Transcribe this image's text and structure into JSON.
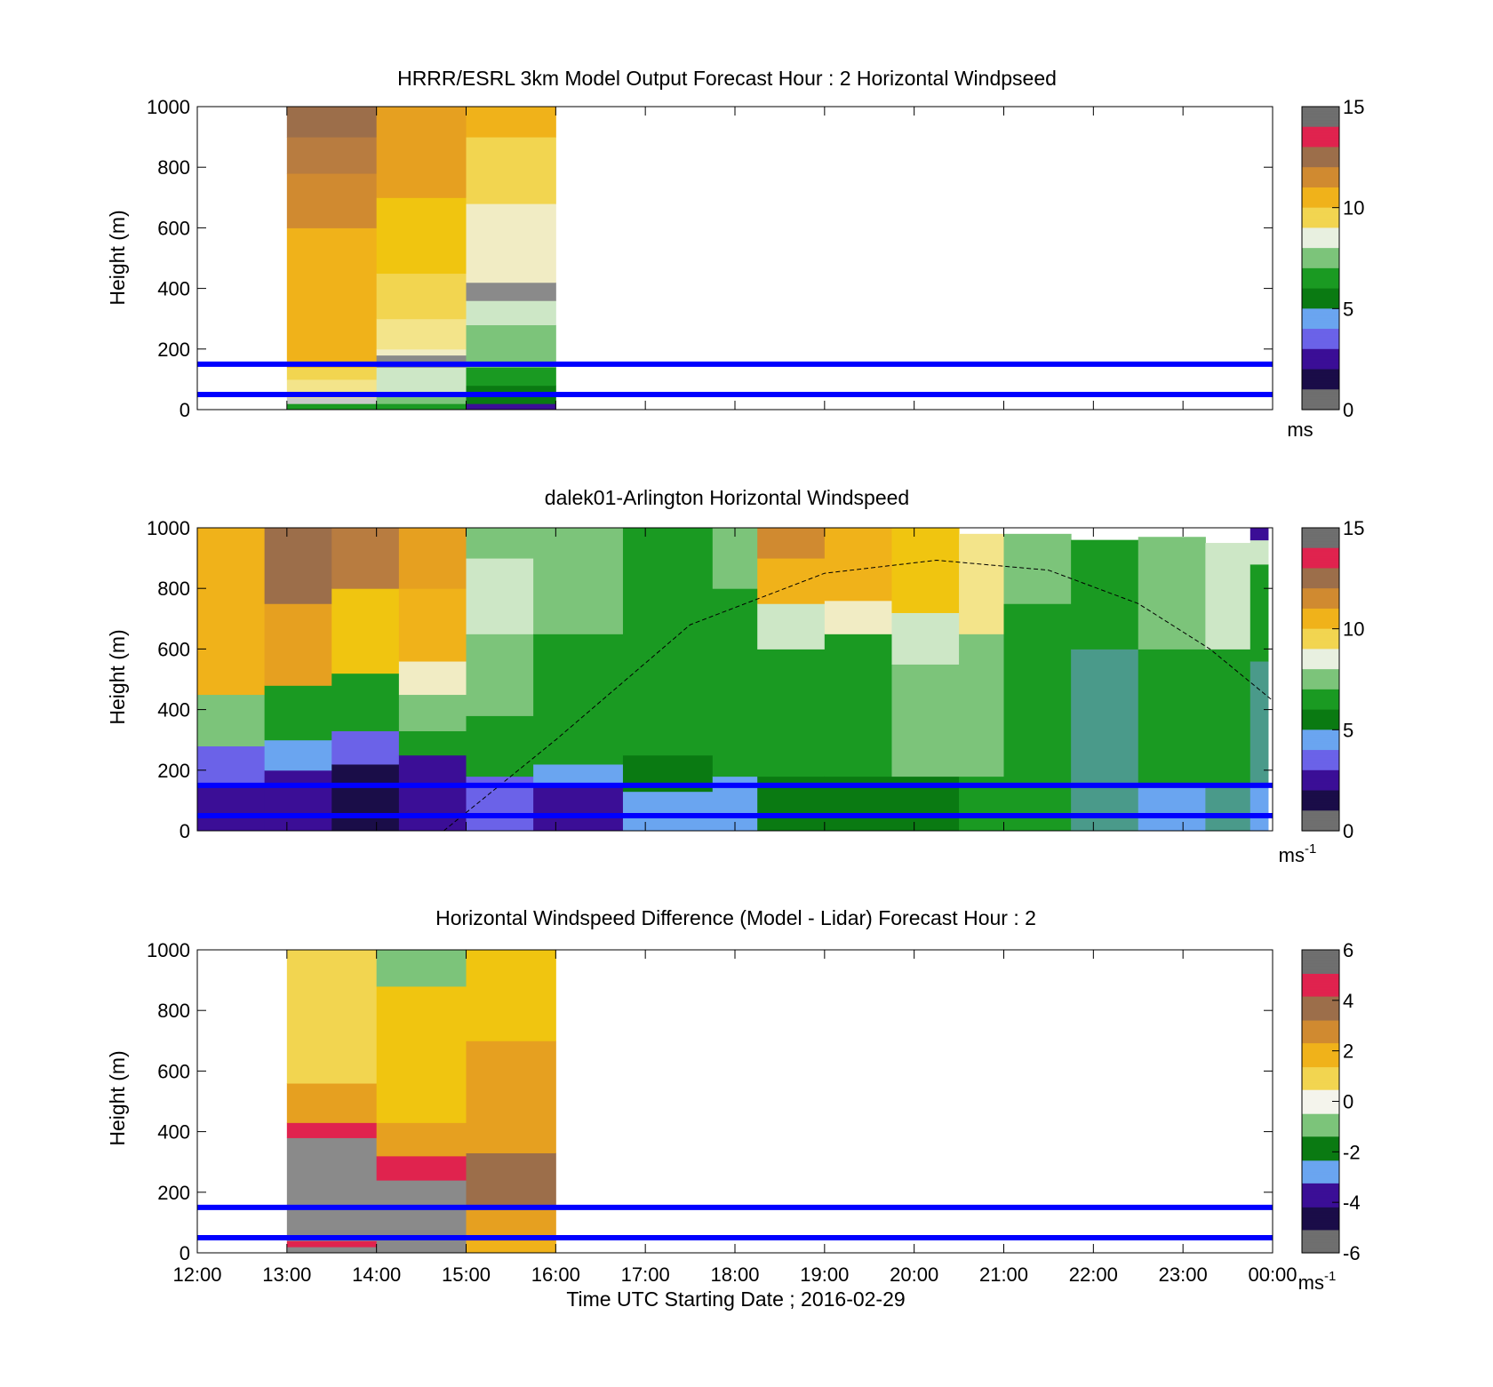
{
  "chart_data": [
    {
      "type": "heatmap",
      "title": "HRRR/ESRL 3km Model Output   Forecast Hour : 2 Horizontal Windpseed",
      "ylabel": "Height (m)",
      "ylim": [
        0,
        1000
      ],
      "yticks": [
        "0",
        "200",
        "400",
        "600",
        "800",
        "1000"
      ],
      "xlim_hours": [
        12,
        24
      ],
      "colorbar": {
        "range": [
          0,
          15
        ],
        "ticks": [
          "0",
          "5",
          "10",
          "15"
        ],
        "unit": "ms",
        "unit_sup": ""
      },
      "reference_lines_m": [
        50,
        150
      ],
      "columns": [
        {
          "t0": 13,
          "t1": 14,
          "bins": [
            [
              0,
              20,
              "green"
            ],
            [
              20,
              40,
              "grey_light"
            ],
            [
              40,
              100,
              "yellow_pale"
            ],
            [
              100,
              140,
              "yellow_light"
            ],
            [
              140,
              600,
              "gold"
            ],
            [
              600,
              780,
              "orange_brown"
            ],
            [
              780,
              900,
              "brown_light"
            ],
            [
              900,
              1000,
              "brown"
            ]
          ]
        },
        {
          "t0": 14,
          "t1": 15,
          "bins": [
            [
              0,
              20,
              "green"
            ],
            [
              20,
              60,
              "green_light"
            ],
            [
              60,
              140,
              "green_pale"
            ],
            [
              140,
              180,
              "grey"
            ],
            [
              180,
              200,
              "cream"
            ],
            [
              200,
              300,
              "yellow_pale"
            ],
            [
              300,
              450,
              "yellow_light"
            ],
            [
              450,
              700,
              "yellow"
            ],
            [
              700,
              1000,
              "orange"
            ]
          ]
        },
        {
          "t0": 15,
          "t1": 16,
          "bins": [
            [
              0,
              20,
              "indigo"
            ],
            [
              20,
              80,
              "green_dark"
            ],
            [
              80,
              140,
              "green"
            ],
            [
              140,
              280,
              "green_light"
            ],
            [
              280,
              360,
              "green_pale"
            ],
            [
              360,
              420,
              "grey"
            ],
            [
              420,
              680,
              "cream"
            ],
            [
              680,
              900,
              "yellow_light"
            ],
            [
              900,
              1000,
              "gold"
            ]
          ]
        }
      ]
    },
    {
      "type": "heatmap",
      "title": "dalek01-Arlington  Horizontal Windspeed",
      "ylabel": "Height (m)",
      "ylim": [
        0,
        1000
      ],
      "yticks": [
        "0",
        "200",
        "400",
        "600",
        "800",
        "1000"
      ],
      "xlim_hours": [
        12,
        24
      ],
      "colorbar": {
        "range": [
          0,
          15
        ],
        "ticks": [
          "0",
          "5",
          "10",
          "15"
        ],
        "unit": "ms",
        "unit_sup": "-1"
      },
      "reference_lines_m": [
        50,
        150
      ],
      "curve": {
        "style": "dashed",
        "points": [
          [
            14.75,
            0
          ],
          [
            16,
            300
          ],
          [
            17.5,
            680
          ],
          [
            19,
            850
          ],
          [
            20.25,
            893
          ],
          [
            21.5,
            860
          ],
          [
            22.5,
            750
          ],
          [
            23.3,
            600
          ],
          [
            24,
            430
          ]
        ]
      },
      "columns": [
        {
          "t0": 12.0,
          "t1": 12.75,
          "bins": [
            [
              0,
              150,
              "indigo"
            ],
            [
              150,
              280,
              "blue_mid"
            ],
            [
              280,
              450,
              "green_light"
            ],
            [
              450,
              1000,
              "gold"
            ]
          ]
        },
        {
          "t0": 12.75,
          "t1": 13.5,
          "bins": [
            [
              0,
              200,
              "indigo"
            ],
            [
              200,
              300,
              "blue_light"
            ],
            [
              300,
              480,
              "green"
            ],
            [
              480,
              750,
              "orange"
            ],
            [
              750,
              1000,
              "brown"
            ]
          ]
        },
        {
          "t0": 13.5,
          "t1": 14.25,
          "bins": [
            [
              0,
              220,
              "navy"
            ],
            [
              220,
              330,
              "blue_mid"
            ],
            [
              330,
              520,
              "green"
            ],
            [
              520,
              800,
              "yellow"
            ],
            [
              800,
              1000,
              "brown_light"
            ]
          ]
        },
        {
          "t0": 14.25,
          "t1": 15.0,
          "bins": [
            [
              0,
              250,
              "indigo"
            ],
            [
              250,
              330,
              "green"
            ],
            [
              330,
              450,
              "green_light"
            ],
            [
              450,
              560,
              "cream"
            ],
            [
              560,
              800,
              "gold"
            ],
            [
              800,
              1000,
              "orange"
            ]
          ]
        },
        {
          "t0": 15.0,
          "t1": 15.75,
          "bins": [
            [
              0,
              180,
              "blue_mid"
            ],
            [
              180,
              380,
              "green"
            ],
            [
              380,
              650,
              "green_light"
            ],
            [
              650,
              900,
              "green_pale"
            ],
            [
              900,
              1000,
              "green_light"
            ]
          ]
        },
        {
          "t0": 15.75,
          "t1": 16.75,
          "bins": [
            [
              0,
              150,
              "indigo"
            ],
            [
              150,
              220,
              "blue_light"
            ],
            [
              220,
              650,
              "green"
            ],
            [
              650,
              1000,
              "green_light"
            ]
          ]
        },
        {
          "t0": 16.75,
          "t1": 17.75,
          "bins": [
            [
              0,
              130,
              "blue_light"
            ],
            [
              130,
              250,
              "green_dark"
            ],
            [
              250,
              1000,
              "green"
            ]
          ]
        },
        {
          "t0": 17.75,
          "t1": 18.25,
          "bins": [
            [
              0,
              180,
              "blue_light"
            ],
            [
              180,
              800,
              "green"
            ],
            [
              800,
              1000,
              "green_light"
            ]
          ]
        },
        {
          "t0": 18.25,
          "t1": 19.0,
          "bins": [
            [
              0,
              180,
              "green_dark"
            ],
            [
              180,
              600,
              "green"
            ],
            [
              600,
              750,
              "green_pale"
            ],
            [
              750,
              900,
              "gold"
            ],
            [
              900,
              1000,
              "orange_brown"
            ]
          ]
        },
        {
          "t0": 19.0,
          "t1": 19.75,
          "bins": [
            [
              0,
              180,
              "green_dark"
            ],
            [
              180,
              650,
              "green"
            ],
            [
              650,
              760,
              "cream"
            ],
            [
              760,
              1000,
              "gold"
            ]
          ]
        },
        {
          "t0": 19.75,
          "t1": 20.5,
          "bins": [
            [
              0,
              180,
              "green_dark"
            ],
            [
              180,
              550,
              "green_light"
            ],
            [
              550,
              720,
              "green_pale"
            ],
            [
              720,
              1000,
              "yellow"
            ]
          ]
        },
        {
          "t0": 20.5,
          "t1": 21.0,
          "bins": [
            [
              0,
              180,
              "green"
            ],
            [
              180,
              650,
              "green_light"
            ],
            [
              650,
              980,
              "yellow_pale"
            ]
          ]
        },
        {
          "t0": 21.0,
          "t1": 21.75,
          "bins": [
            [
              0,
              180,
              "green"
            ],
            [
              180,
              750,
              "green"
            ],
            [
              750,
              980,
              "green_light"
            ]
          ]
        },
        {
          "t0": 21.75,
          "t1": 22.5,
          "bins": [
            [
              0,
              150,
              "green_blue"
            ],
            [
              150,
              600,
              "green_blue"
            ],
            [
              600,
              960,
              "green"
            ]
          ]
        },
        {
          "t0": 22.5,
          "t1": 23.25,
          "bins": [
            [
              0,
              150,
              "blue_light"
            ],
            [
              150,
              600,
              "green"
            ],
            [
              600,
              970,
              "green_light"
            ]
          ]
        },
        {
          "t0": 23.25,
          "t1": 23.75,
          "bins": [
            [
              0,
              150,
              "green_blue"
            ],
            [
              150,
              600,
              "green"
            ],
            [
              600,
              950,
              "green_pale"
            ]
          ]
        },
        {
          "t0": 23.75,
          "t1": 23.95,
          "bins": [
            [
              0,
              150,
              "blue_light"
            ],
            [
              150,
              560,
              "green_blue"
            ],
            [
              560,
              880,
              "green"
            ],
            [
              880,
              960,
              "green_pale"
            ],
            [
              960,
              1000,
              "indigo"
            ]
          ]
        }
      ]
    },
    {
      "type": "heatmap",
      "title": "Horizontal Windspeed Difference (Model - Lidar) Forecast Hour : 2",
      "ylabel": "Height (m)",
      "xlabel": "Time UTC  Starting Date ; 2016-02-29",
      "ylim": [
        0,
        1000
      ],
      "yticks": [
        "0",
        "200",
        "400",
        "600",
        "800",
        "1000"
      ],
      "xticks": [
        "12:00",
        "13:00",
        "14:00",
        "15:00",
        "16:00",
        "17:00",
        "18:00",
        "19:00",
        "20:00",
        "21:00",
        "22:00",
        "23:00",
        "00:00"
      ],
      "xlim_hours": [
        12,
        24
      ],
      "colorbar": {
        "range": [
          -6,
          6
        ],
        "ticks": [
          "-6",
          "-4",
          "-2",
          "0",
          "2",
          "4",
          "6"
        ],
        "unit": "ms",
        "unit_sup": "-1"
      },
      "reference_lines_m": [
        50,
        150
      ],
      "columns": [
        {
          "t0": 13,
          "t1": 14,
          "bins": [
            [
              0,
              20,
              "grey"
            ],
            [
              20,
              40,
              "red"
            ],
            [
              40,
              380,
              "grey"
            ],
            [
              380,
              430,
              "red"
            ],
            [
              430,
              560,
              "orange"
            ],
            [
              560,
              1000,
              "yellow_light"
            ]
          ]
        },
        {
          "t0": 14,
          "t1": 15,
          "bins": [
            [
              0,
              30,
              "grey"
            ],
            [
              30,
              240,
              "grey"
            ],
            [
              240,
              320,
              "red"
            ],
            [
              320,
              430,
              "orange"
            ],
            [
              430,
              880,
              "yellow"
            ],
            [
              880,
              1000,
              "green_light"
            ]
          ]
        },
        {
          "t0": 15,
          "t1": 16,
          "bins": [
            [
              0,
              40,
              "gold"
            ],
            [
              40,
              150,
              "orange"
            ],
            [
              150,
              330,
              "brown"
            ],
            [
              330,
              700,
              "orange"
            ],
            [
              700,
              1000,
              "yellow"
            ]
          ]
        }
      ]
    }
  ],
  "palette": {
    "navy": "#1a0d48",
    "indigo": "#3b0e96",
    "blue_mid": "#6b62e8",
    "blue_light": "#6aa5f0",
    "green_dark": "#0a7a12",
    "green": "#1a9a22",
    "green_blue": "#4a9a8a",
    "green_light": "#7cc47a",
    "green_pale": "#cde7c6",
    "cream": "#f1ecc4",
    "grey_light": "#c9c9c9",
    "grey": "#8a8a8a",
    "yellow_pale": "#f3e48a",
    "yellow_light": "#f2d550",
    "yellow": "#f0c510",
    "gold": "#f0b21a",
    "orange": "#e6a020",
    "orange_brown": "#d08a30",
    "brown_light": "#b87c40",
    "brown": "#9c6e4a",
    "red": "#e0234e",
    "line_blue": "#0000ff"
  }
}
